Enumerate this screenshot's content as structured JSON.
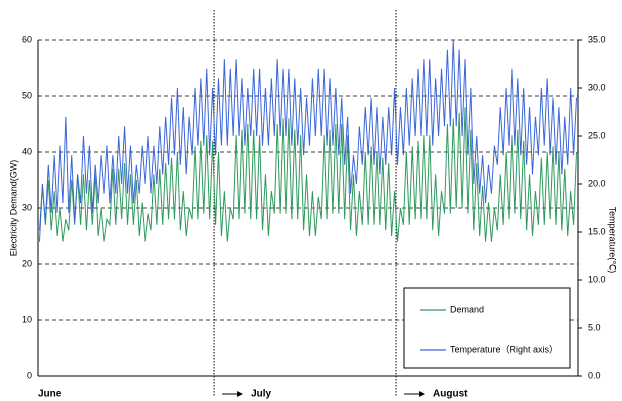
{
  "chart_data": {
    "type": "line",
    "y_label": "Electricity Demand(GW)",
    "y2_label": "Temperature(℃)",
    "ylim": [
      0,
      60
    ],
    "yticks": [
      0,
      10,
      20,
      30,
      40,
      50,
      60
    ],
    "y2lim": [
      0,
      35
    ],
    "y2ticks": [
      {
        "value": 0,
        "label": "0.0"
      },
      {
        "value": 5,
        "label": "5.0"
      },
      {
        "value": 10,
        "label": "10.0"
      },
      {
        "value": 15,
        "label": "15.0"
      },
      {
        "value": 20,
        "label": "20.0"
      },
      {
        "value": 25,
        "label": "25.0"
      },
      {
        "value": 30,
        "label": "30.0"
      },
      {
        "value": 35,
        "label": "35.0"
      }
    ],
    "grid": true,
    "legend": "lower right",
    "categories": [
      "June",
      null,
      null,
      null,
      null,
      null,
      null,
      null,
      null,
      null,
      null,
      null,
      null,
      null,
      null,
      null,
      null,
      null,
      null,
      null,
      null,
      null,
      null,
      null,
      null,
      null,
      null,
      null,
      null,
      null,
      null,
      null,
      null,
      null,
      null,
      null,
      null,
      null,
      null,
      null,
      null,
      null,
      null,
      null,
      null,
      null,
      null,
      null,
      null,
      null,
      null,
      null,
      null,
      null,
      null,
      null,
      null,
      null,
      null,
      null,
      "July",
      null,
      null,
      null,
      null,
      null,
      null,
      null,
      null,
      null,
      null,
      null,
      null,
      null,
      null,
      null,
      null,
      null,
      null,
      null,
      null,
      null,
      null,
      null,
      null,
      null,
      null,
      null,
      null,
      null,
      null,
      null,
      null,
      null,
      null,
      null,
      null,
      null,
      null,
      null,
      null,
      null,
      null,
      null,
      null,
      null,
      null,
      null,
      null,
      null,
      null,
      null,
      null,
      null,
      null,
      null,
      null,
      null,
      null,
      null,
      null,
      null,
      "August",
      null,
      null,
      null,
      null,
      null,
      null,
      null,
      null,
      null,
      null,
      null,
      null,
      null,
      null,
      null,
      null,
      null,
      null,
      null,
      null,
      null,
      null,
      null,
      null,
      null,
      null,
      null,
      null,
      null,
      null,
      null,
      null,
      null,
      null,
      null,
      null,
      null,
      null,
      null,
      null,
      null,
      null,
      null,
      null,
      null,
      null,
      null,
      null,
      null,
      null,
      null,
      null,
      null,
      null,
      null,
      null,
      null,
      null,
      null,
      null,
      null
    ],
    "series": [
      {
        "name": "Demand",
        "color": "#2e9a5c",
        "values": [
          26,
          34,
          27,
          35,
          26,
          33,
          25,
          30,
          24,
          28,
          26,
          35,
          27,
          36,
          27,
          36,
          26,
          35,
          27,
          36,
          25,
          30,
          24,
          28,
          27,
          37,
          27,
          37,
          28,
          38,
          27,
          36,
          27,
          35,
          25,
          31,
          24,
          29,
          26,
          36,
          27,
          37,
          27,
          38,
          28,
          39,
          28,
          40,
          26,
          33,
          25,
          30,
          28,
          41,
          28,
          42,
          29,
          43,
          28,
          42,
          27,
          40,
          25,
          33,
          24,
          30,
          28,
          43,
          28,
          44,
          29,
          45,
          28,
          44,
          28,
          43,
          26,
          36,
          25,
          33,
          29,
          45,
          29,
          46,
          29,
          46,
          28,
          44,
          28,
          43,
          26,
          36,
          25,
          33,
          25,
          32,
          28,
          43,
          28,
          44,
          29,
          45,
          29,
          45,
          28,
          43,
          26,
          36,
          25,
          33,
          27,
          40,
          27,
          41,
          27,
          40,
          27,
          39,
          26,
          38,
          25,
          33,
          24,
          30,
          27,
          40,
          27,
          41,
          28,
          42,
          28,
          43,
          28,
          43,
          26,
          36,
          25,
          33,
          29,
          45,
          29,
          46,
          30,
          47,
          30,
          48,
          29,
          44,
          26,
          38,
          25,
          34,
          24,
          31,
          24,
          30,
          26,
          36,
          27,
          40,
          28,
          43,
          29,
          44,
          28,
          42,
          26,
          36,
          25,
          33,
          27,
          39,
          27,
          40,
          28,
          41,
          27,
          40,
          26,
          37,
          25,
          33,
          27,
          40
        ]
      },
      {
        "name": "Temperature（Right axis）",
        "color": "#3a66d8",
        "axis": "y2",
        "values": [
          14,
          20,
          16,
          22,
          17,
          23,
          17,
          24,
          18,
          27,
          17,
          23,
          16,
          21,
          18,
          25,
          19,
          24,
          17,
          22,
          18,
          23,
          19,
          24,
          18,
          23,
          19,
          25,
          20,
          26,
          19,
          24,
          18,
          22,
          19,
          24,
          20,
          25,
          19,
          24,
          20,
          26,
          21,
          27,
          22,
          29,
          23,
          30,
          22,
          28,
          21,
          27,
          23,
          30,
          24,
          31,
          24,
          32,
          23,
          30,
          23,
          31,
          24,
          33,
          24,
          32,
          25,
          33,
          25,
          31,
          24,
          30,
          25,
          32,
          25,
          32,
          24,
          30,
          24,
          31,
          25,
          33,
          25,
          32,
          25,
          32,
          24,
          31,
          24,
          30,
          23,
          29,
          24,
          31,
          25,
          32,
          25,
          32,
          24,
          31,
          24,
          30,
          23,
          29,
          22,
          27,
          19,
          23,
          20,
          26,
          22,
          28,
          23,
          29,
          22,
          28,
          21,
          27,
          22,
          28,
          23,
          30,
          22,
          28,
          23,
          30,
          24,
          31,
          25,
          32,
          25,
          33,
          25,
          33,
          24,
          31,
          25,
          32,
          26,
          34,
          26,
          35,
          26,
          34,
          25,
          33,
          23,
          30,
          20,
          25,
          19,
          23,
          18,
          22,
          19,
          24,
          22,
          28,
          23,
          30,
          24,
          32,
          24,
          31,
          23,
          30,
          22,
          28,
          21,
          27,
          23,
          30,
          24,
          31,
          23,
          29,
          22,
          28,
          21,
          27,
          22,
          30,
          23,
          29
        ]
      }
    ]
  }
}
